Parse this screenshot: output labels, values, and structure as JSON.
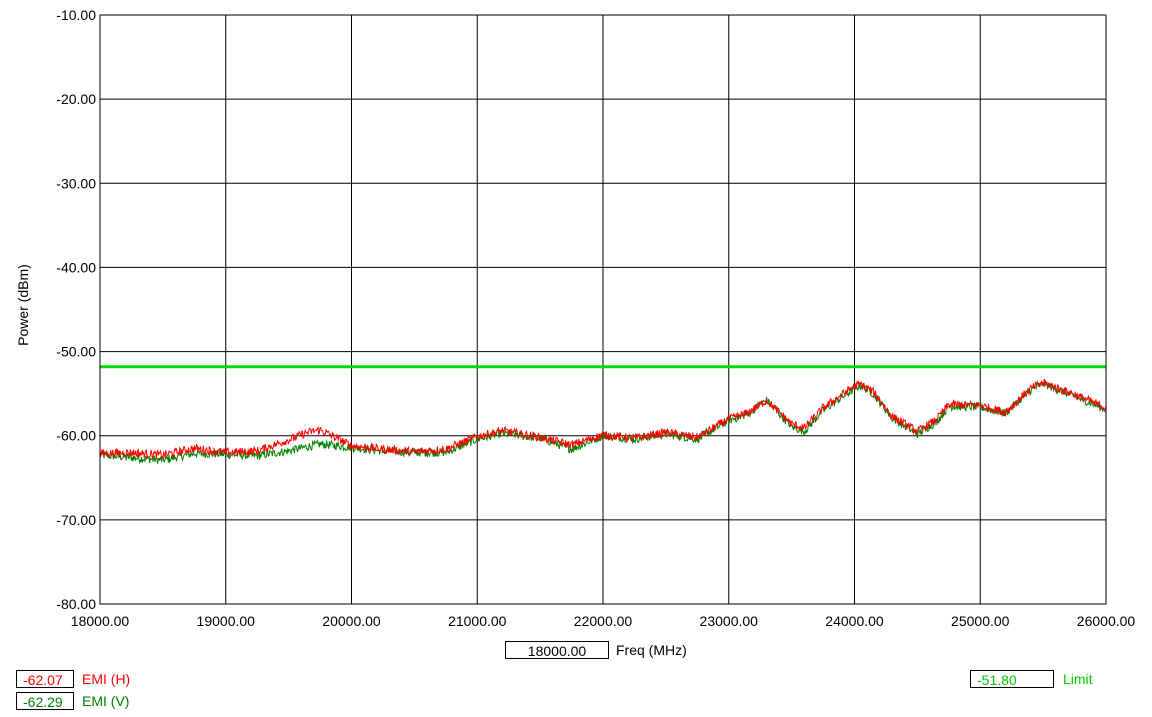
{
  "chart_data": {
    "type": "line",
    "xlabel": "Freq (MHz)",
    "ylabel": "Power (dBm)",
    "xlim": [
      18000,
      26000
    ],
    "ylim": [
      -80,
      -10
    ],
    "grid": true,
    "x_ticks": [
      "18000.00",
      "19000.00",
      "20000.00",
      "21000.00",
      "22000.00",
      "23000.00",
      "24000.00",
      "25000.00",
      "26000.00"
    ],
    "y_ticks": [
      "-10.00",
      "-20.00",
      "-30.00",
      "-40.00",
      "-50.00",
      "-60.00",
      "-70.00",
      "-80.00"
    ],
    "series": [
      {
        "name": "EMI (H)",
        "color": "#ff0000",
        "x": [
          18000,
          18250,
          18500,
          18750,
          19000,
          19250,
          19500,
          19650,
          19750,
          19900,
          20000,
          20250,
          20500,
          20750,
          21000,
          21200,
          21500,
          21750,
          22000,
          22250,
          22500,
          22750,
          23000,
          23150,
          23300,
          23500,
          23600,
          23750,
          24000,
          24050,
          24150,
          24300,
          24500,
          24650,
          24750,
          25000,
          25200,
          25400,
          25500,
          25750,
          26000
        ],
        "y": [
          -62.1,
          -62.0,
          -62.3,
          -61.5,
          -62.0,
          -61.8,
          -60.5,
          -59.6,
          -59.3,
          -60.4,
          -61.2,
          -61.6,
          -61.9,
          -61.6,
          -60.1,
          -59.4,
          -60.2,
          -61.1,
          -59.9,
          -60.3,
          -59.6,
          -60.2,
          -58.0,
          -57.3,
          -55.8,
          -58.6,
          -59.1,
          -56.7,
          -54.1,
          -53.9,
          -54.8,
          -57.7,
          -59.5,
          -58.1,
          -56.3,
          -56.4,
          -57.2,
          -54.4,
          -53.7,
          -55.1,
          -56.7
        ]
      },
      {
        "name": "EMI (V)",
        "color": "#008000",
        "x": [
          18000,
          18250,
          18500,
          18750,
          19000,
          19250,
          19500,
          19650,
          19750,
          19900,
          20000,
          20250,
          20500,
          20750,
          21000,
          21200,
          21500,
          21750,
          22000,
          22250,
          22500,
          22750,
          23000,
          23150,
          23300,
          23500,
          23600,
          23750,
          24000,
          24050,
          24150,
          24300,
          24500,
          24650,
          24750,
          25000,
          25200,
          25400,
          25500,
          25750,
          26000
        ],
        "y": [
          -62.3,
          -62.6,
          -62.9,
          -62.1,
          -62.2,
          -62.4,
          -61.8,
          -61.3,
          -61.0,
          -61.2,
          -61.4,
          -61.8,
          -62.0,
          -62.0,
          -60.4,
          -59.7,
          -60.3,
          -61.6,
          -60.0,
          -60.4,
          -59.8,
          -60.4,
          -58.2,
          -57.4,
          -55.8,
          -58.9,
          -59.5,
          -57.0,
          -54.4,
          -54.0,
          -55.0,
          -57.9,
          -59.8,
          -58.4,
          -56.5,
          -56.6,
          -57.3,
          -54.6,
          -53.8,
          -55.3,
          -56.9
        ]
      },
      {
        "name": "Limit",
        "color": "#00dd00",
        "x": [
          18000,
          26000
        ],
        "y": [
          -51.8,
          -51.8
        ]
      }
    ]
  },
  "readouts": {
    "freq_value": "18000.00",
    "freq_label": "Freq (MHz)",
    "emi_h_value": "-62.07",
    "emi_h_label": "EMI (H)",
    "emi_v_value": "-62.29",
    "emi_v_label": "EMI (V)",
    "limit_value": "-51.80",
    "limit_label": "Limit"
  },
  "colors": {
    "emi_h": "#ff0000",
    "emi_v": "#008000",
    "limit": "#00dd00",
    "grid": "#000000"
  }
}
